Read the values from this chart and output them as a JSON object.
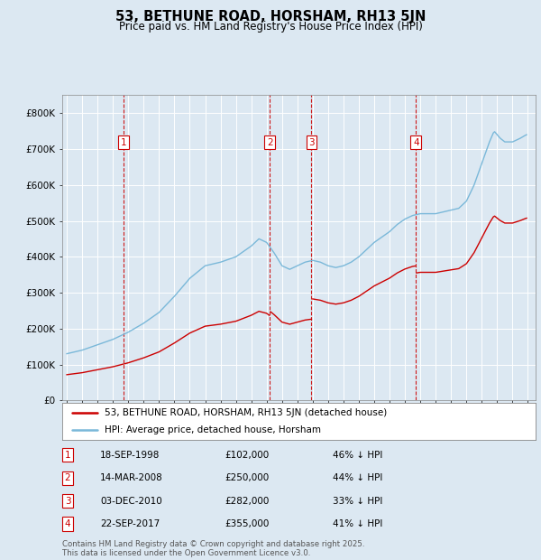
{
  "title": "53, BETHUNE ROAD, HORSHAM, RH13 5JN",
  "subtitle": "Price paid vs. HM Land Registry's House Price Index (HPI)",
  "background_color": "#dce8f2",
  "plot_bg_color": "#dce8f2",
  "ylim": [
    0,
    850000
  ],
  "yticks": [
    0,
    100000,
    200000,
    300000,
    400000,
    500000,
    600000,
    700000,
    800000
  ],
  "ytick_labels": [
    "£0",
    "£100K",
    "£200K",
    "£300K",
    "£400K",
    "£500K",
    "£600K",
    "£700K",
    "£800K"
  ],
  "xlim_start": 1994.7,
  "xlim_end": 2025.5,
  "purchases": [
    {
      "num": 1,
      "date": "18-SEP-1998",
      "year": 1998.71,
      "price": 102000,
      "hpi_pct": "46% ↓ HPI"
    },
    {
      "num": 2,
      "date": "14-MAR-2008",
      "year": 2008.2,
      "price": 250000,
      "hpi_pct": "44% ↓ HPI"
    },
    {
      "num": 3,
      "date": "03-DEC-2010",
      "year": 2010.92,
      "price": 282000,
      "hpi_pct": "33% ↓ HPI"
    },
    {
      "num": 4,
      "date": "22-SEP-2017",
      "year": 2017.72,
      "price": 355000,
      "hpi_pct": "41% ↓ HPI"
    }
  ],
  "hpi_color": "#7ab8d9",
  "price_color": "#cc0000",
  "dashed_color": "#cc0000",
  "legend_label_price": "53, BETHUNE ROAD, HORSHAM, RH13 5JN (detached house)",
  "legend_label_hpi": "HPI: Average price, detached house, Horsham",
  "footer": "Contains HM Land Registry data © Crown copyright and database right 2025.\nThis data is licensed under the Open Government Licence v3.0."
}
